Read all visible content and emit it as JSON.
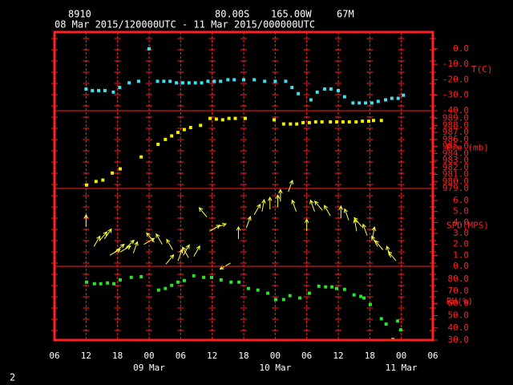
{
  "header": {
    "station": "8910",
    "lat": "80.00S",
    "lon": "165.00W",
    "elev": "67M",
    "period": "08 Mar 2015/120000UTC - 11 Mar 2015/000000UTC",
    "page": "2"
  },
  "x_axis": {
    "xlim": [
      6,
      78
    ],
    "xticks": [
      {
        "value": 6,
        "label": "06"
      },
      12,
      18,
      {
        "value": 24,
        "label": "00"
      },
      {
        "value": 30,
        "label": "06"
      },
      {
        "value": 36,
        "label": "12"
      },
      {
        "value": 42,
        "label": "18"
      },
      {
        "value": 48,
        "label": "00"
      },
      {
        "value": 54,
        "label": "06"
      },
      {
        "value": 60,
        "label": "12"
      },
      {
        "value": 66,
        "label": "18"
      },
      {
        "value": 72,
        "label": "00"
      },
      {
        "value": 78,
        "label": "06"
      }
    ],
    "date_ticks": [
      {
        "value": 24,
        "label": "09 Mar"
      },
      {
        "value": 48,
        "label": "10 Mar"
      },
      {
        "value": 72,
        "label": "11 Mar"
      }
    ]
  },
  "chart_data": [
    {
      "type": "scatter",
      "ylabel": "T(C)",
      "color": "#40e0f0",
      "ylim": [
        -40,
        10.8
      ],
      "yticks": [
        {
          "value": 0,
          "label": "0.0"
        },
        {
          "value": -10,
          "label": "-10.0"
        },
        {
          "value": -20,
          "label": "-20.0"
        },
        {
          "value": -30,
          "label": "-30.0"
        },
        {
          "value": -40,
          "label": "-40.0"
        }
      ],
      "x": [
        12,
        13.2,
        14.4,
        15.6,
        17.2,
        18.4,
        20.2,
        22,
        24,
        25.6,
        26.8,
        28,
        29.2,
        30.4,
        31.6,
        32.8,
        34,
        35.2,
        36.4,
        37.6,
        39,
        40.2,
        42,
        44,
        46,
        48,
        50,
        51.2,
        52.4,
        54.8,
        56,
        57.4,
        58.6,
        60,
        61.2,
        62.8,
        64,
        65.2,
        66.4,
        67.6,
        69,
        70.2,
        71.4,
        72.4
      ],
      "values": [
        -26,
        -27,
        -27,
        -27,
        -28,
        -25,
        -22,
        -21,
        0,
        -21,
        -21,
        -21,
        -22,
        -22,
        -22,
        -22,
        -22,
        -21,
        -21,
        -21,
        -20,
        -20,
        -20,
        -20,
        -21,
        -21,
        -21,
        -25,
        -29,
        -33,
        -28,
        -26,
        -26,
        -27,
        -31,
        -35,
        -35,
        -35,
        -35,
        -34,
        -33,
        -32,
        -32,
        -30
      ]
    },
    {
      "type": "scatter",
      "ylabel": "Pre (mb)",
      "color": "#f0f000",
      "ylim": [
        979,
        990.1
      ],
      "yticks": [
        {
          "value": 989,
          "label": "989.0"
        },
        {
          "value": 988,
          "label": "988.0"
        },
        {
          "value": 987,
          "label": "987.0"
        },
        {
          "value": 986,
          "label": "986.0"
        },
        {
          "value": 985,
          "label": "985.0"
        },
        {
          "value": 984,
          "label": "984.0"
        },
        {
          "value": 983,
          "label": "983.0"
        },
        {
          "value": 982,
          "label": "982.0"
        },
        {
          "value": 981,
          "label": "981.0"
        },
        {
          "value": 980,
          "label": "980.0"
        },
        {
          "value": 979,
          "label": "979.0"
        }
      ],
      "x": [
        12.1,
        13.9,
        15.2,
        17,
        18.5,
        22.5,
        25.7,
        27.1,
        28.3,
        29.5,
        30.7,
        31.9,
        33.8,
        35.6,
        36.8,
        38,
        39.2,
        40.4,
        42.3,
        47.8,
        49.6,
        50.9,
        52.1,
        53.3,
        54.5,
        55.7,
        56.9,
        58.5,
        59.7,
        60.9,
        62.1,
        63.4,
        64.6,
        65.8,
        66.7,
        68.2
      ],
      "values": [
        979.5,
        980.0,
        980.2,
        981.2,
        981.8,
        983.5,
        985.3,
        986.0,
        986.5,
        987.0,
        987.4,
        987.7,
        988.0,
        989.0,
        988.9,
        988.8,
        989.0,
        989.0,
        989.0,
        988.8,
        988.2,
        988.2,
        988.2,
        988.4,
        988.4,
        988.5,
        988.5,
        988.5,
        988.5,
        988.5,
        988.5,
        988.5,
        988.6,
        988.6,
        988.7,
        988.7
      ]
    },
    {
      "type": "quiver",
      "ylabel": "SPD(MPS)",
      "color": "#ffff40",
      "ylim": [
        0,
        7.1
      ],
      "yticks": [
        {
          "value": 6,
          "label": "6.0"
        },
        {
          "value": 5,
          "label": "5.0"
        },
        {
          "value": 4,
          "label": "4.0"
        },
        {
          "value": 3,
          "label": "3.0"
        },
        {
          "value": 2,
          "label": "2.0"
        },
        {
          "value": 1,
          "label": "1.0"
        },
        {
          "value": 0,
          "label": "0.0"
        }
      ],
      "x": [
        12,
        13.5,
        14.5,
        15.5,
        16.5,
        17.5,
        18.5,
        19.5,
        21,
        23,
        25,
        26.5,
        27.2,
        28.5,
        29.5,
        30.5,
        31.5,
        32.5,
        35,
        35.5,
        36.5,
        39.5,
        41,
        42.5,
        44,
        45.5,
        47,
        48.5,
        49,
        50.5,
        52,
        54,
        55.5,
        57,
        58.5,
        60.5,
        62,
        63.5,
        64.5,
        65.5,
        66.5,
        67.5,
        68.5,
        70,
        71
      ],
      "values": [
        3.6,
        1.8,
        2.3,
        2.5,
        1.0,
        1.3,
        1.3,
        1.6,
        1.2,
        2.0,
        2.2,
        2.0,
        0.2,
        1.5,
        0.5,
        1.0,
        0.8,
        0.9,
        4.5,
        3.2,
        3.5,
        0.3,
        2.5,
        3.5,
        4.7,
        5.0,
        5.2,
        5.4,
        5.9,
        6.8,
        5.0,
        3.2,
        5.0,
        5.1,
        4.6,
        4.4,
        4.2,
        3.2,
        3.6,
        2.8,
        2.5,
        1.8,
        1.5,
        0.8,
        0.5
      ],
      "directions": [
        0,
        30,
        40,
        35,
        60,
        50,
        60,
        45,
        20,
        60,
        320,
        330,
        40,
        330,
        20,
        30,
        330,
        30,
        320,
        60,
        70,
        240,
        0,
        20,
        30,
        10,
        0,
        0,
        0,
        20,
        340,
        0,
        340,
        320,
        330,
        0,
        340,
        350,
        320,
        340,
        10,
        330,
        320,
        340,
        320
      ]
    },
    {
      "type": "scatter",
      "ylabel": "RH(%)",
      "color": "#30e030",
      "ylim": [
        30,
        90.5
      ],
      "yticks": [
        {
          "value": 80,
          "label": "80.0"
        },
        {
          "value": 70,
          "label": "70.0"
        },
        {
          "value": 60,
          "label": "60.0"
        },
        {
          "value": 50,
          "label": "50.0"
        },
        {
          "value": 40,
          "label": "40.0"
        },
        {
          "value": 30,
          "label": "30.0"
        }
      ],
      "x": [
        12.1,
        13.6,
        14.8,
        16.1,
        17.3,
        18.5,
        20.6,
        22.5,
        25.8,
        27.1,
        28.3,
        29.5,
        30.7,
        32.5,
        34.4,
        35.9,
        37.7,
        39.6,
        41.1,
        42.9,
        44.7,
        46.6,
        48.1,
        49.6,
        50.8,
        52.7,
        54.5,
        56.3,
        57.6,
        58.8,
        59.7,
        61.2,
        63,
        64.3,
        64.9,
        66.1,
        68.2,
        69.1,
        70.4,
        71.3,
        71.9
      ],
      "values": [
        77.5,
        76.2,
        76.2,
        76.8,
        76.2,
        79.4,
        81.4,
        82,
        71,
        72.3,
        74.9,
        77.5,
        78.8,
        82.7,
        81.4,
        81.4,
        79.4,
        77.5,
        77.5,
        72.3,
        71,
        68.4,
        63.2,
        63.2,
        66.4,
        64.5,
        68.4,
        74.2,
        73.6,
        73.6,
        72.3,
        71.6,
        67,
        65.8,
        64.5,
        59.2,
        47.5,
        43.1,
        30.7,
        45.6,
        38.4
      ]
    }
  ]
}
